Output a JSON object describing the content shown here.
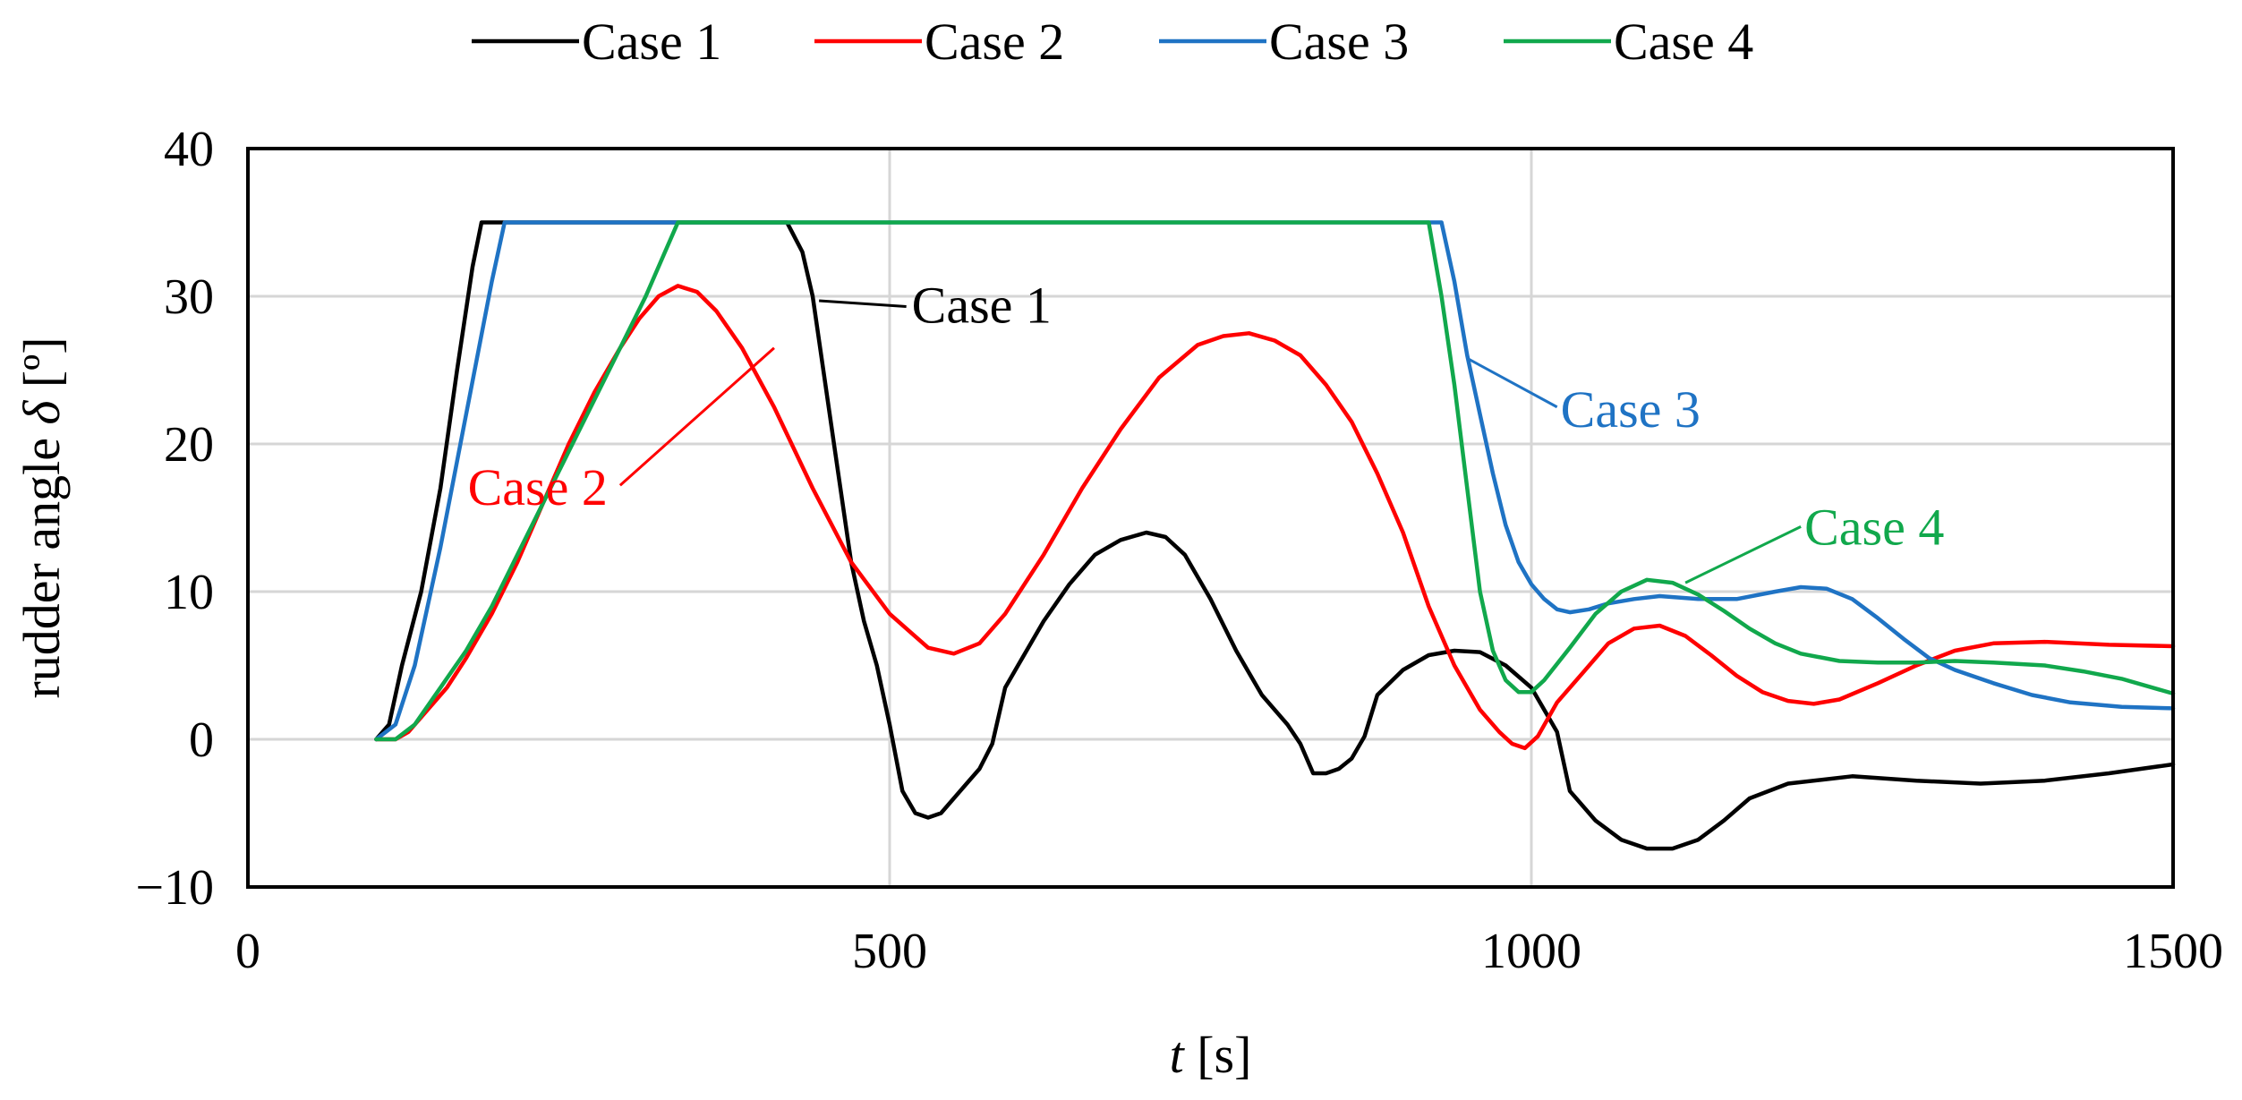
{
  "chart_data": {
    "type": "line",
    "title": "",
    "xlabel_italic": "t",
    "xlabel_rest": " [s]",
    "ylabel_text": "rudder angle ",
    "ylabel_symbol": "δ",
    "ylabel_unit": " [º]",
    "xlim": [
      0,
      1500
    ],
    "ylim": [
      -10,
      40
    ],
    "x_ticks": [
      0,
      500,
      1000,
      1500
    ],
    "y_ticks": [
      -10,
      0,
      10,
      20,
      30,
      40
    ],
    "x_tick_labels": [
      "0",
      "500",
      "1000",
      "1500"
    ],
    "y_tick_labels": [
      "−10",
      "0",
      "10",
      "20",
      "30",
      "40"
    ],
    "grid": true,
    "legend_position": "top-center",
    "colors": {
      "Case 1": "#000000",
      "Case 2": "#ff0000",
      "Case 3": "#1f73c4",
      "Case 4": "#11a84c"
    },
    "series": [
      {
        "name": "Case 1",
        "color": "#000000",
        "points": [
          [
            100,
            0
          ],
          [
            110,
            1
          ],
          [
            120,
            5
          ],
          [
            135,
            10
          ],
          [
            150,
            17
          ],
          [
            163,
            25
          ],
          [
            175,
            32
          ],
          [
            182,
            35
          ],
          [
            420,
            35
          ],
          [
            432,
            33
          ],
          [
            440,
            30
          ],
          [
            450,
            24
          ],
          [
            460,
            18
          ],
          [
            470,
            12
          ],
          [
            480,
            8
          ],
          [
            490,
            5
          ],
          [
            500,
            1
          ],
          [
            510,
            -3.5
          ],
          [
            520,
            -5
          ],
          [
            530,
            -5.3
          ],
          [
            540,
            -5
          ],
          [
            550,
            -4
          ],
          [
            560,
            -3
          ],
          [
            570,
            -2
          ],
          [
            580,
            -0.3
          ],
          [
            590,
            3.5
          ],
          [
            600,
            5
          ],
          [
            620,
            8
          ],
          [
            640,
            10.5
          ],
          [
            660,
            12.5
          ],
          [
            680,
            13.5
          ],
          [
            700,
            14
          ],
          [
            715,
            13.7
          ],
          [
            730,
            12.5
          ],
          [
            750,
            9.5
          ],
          [
            770,
            6
          ],
          [
            790,
            3
          ],
          [
            810,
            1
          ],
          [
            820,
            -0.3
          ],
          [
            830,
            -2.3
          ],
          [
            840,
            -2.3
          ],
          [
            850,
            -2
          ],
          [
            860,
            -1.3
          ],
          [
            870,
            0.2
          ],
          [
            880,
            3
          ],
          [
            900,
            4.7
          ],
          [
            920,
            5.7
          ],
          [
            940,
            6
          ],
          [
            960,
            5.9
          ],
          [
            980,
            5
          ],
          [
            1000,
            3.5
          ],
          [
            1020,
            0.5
          ],
          [
            1030,
            -3.5
          ],
          [
            1050,
            -5.5
          ],
          [
            1070,
            -6.8
          ],
          [
            1090,
            -7.4
          ],
          [
            1110,
            -7.4
          ],
          [
            1130,
            -6.8
          ],
          [
            1150,
            -5.5
          ],
          [
            1170,
            -4
          ],
          [
            1200,
            -3
          ],
          [
            1250,
            -2.5
          ],
          [
            1300,
            -2.8
          ],
          [
            1350,
            -3
          ],
          [
            1400,
            -2.8
          ],
          [
            1450,
            -2.3
          ],
          [
            1500,
            -1.7
          ]
        ]
      },
      {
        "name": "Case 2",
        "color": "#ff0000",
        "points": [
          [
            100,
            0
          ],
          [
            115,
            0
          ],
          [
            125,
            0.5
          ],
          [
            140,
            2
          ],
          [
            155,
            3.5
          ],
          [
            170,
            5.5
          ],
          [
            190,
            8.5
          ],
          [
            210,
            12
          ],
          [
            230,
            16
          ],
          [
            250,
            20
          ],
          [
            270,
            23.5
          ],
          [
            290,
            26.5
          ],
          [
            305,
            28.5
          ],
          [
            320,
            30
          ],
          [
            335,
            30.7
          ],
          [
            350,
            30.3
          ],
          [
            365,
            29
          ],
          [
            385,
            26.5
          ],
          [
            410,
            22.5
          ],
          [
            440,
            17
          ],
          [
            470,
            12
          ],
          [
            500,
            8.5
          ],
          [
            530,
            6.2
          ],
          [
            550,
            5.8
          ],
          [
            570,
            6.5
          ],
          [
            590,
            8.5
          ],
          [
            620,
            12.5
          ],
          [
            650,
            17
          ],
          [
            680,
            21
          ],
          [
            710,
            24.5
          ],
          [
            740,
            26.7
          ],
          [
            760,
            27.3
          ],
          [
            780,
            27.5
          ],
          [
            800,
            27
          ],
          [
            820,
            26
          ],
          [
            840,
            24
          ],
          [
            860,
            21.5
          ],
          [
            880,
            18
          ],
          [
            900,
            14
          ],
          [
            920,
            9
          ],
          [
            940,
            5
          ],
          [
            960,
            2
          ],
          [
            975,
            0.5
          ],
          [
            985,
            -0.3
          ],
          [
            995,
            -0.6
          ],
          [
            1005,
            0.2
          ],
          [
            1020,
            2.5
          ],
          [
            1040,
            4.5
          ],
          [
            1060,
            6.5
          ],
          [
            1080,
            7.5
          ],
          [
            1100,
            7.7
          ],
          [
            1120,
            7
          ],
          [
            1140,
            5.7
          ],
          [
            1160,
            4.3
          ],
          [
            1180,
            3.2
          ],
          [
            1200,
            2.6
          ],
          [
            1220,
            2.4
          ],
          [
            1240,
            2.7
          ],
          [
            1270,
            3.8
          ],
          [
            1300,
            5
          ],
          [
            1330,
            6
          ],
          [
            1360,
            6.5
          ],
          [
            1400,
            6.6
          ],
          [
            1450,
            6.4
          ],
          [
            1500,
            6.3
          ]
        ]
      },
      {
        "name": "Case 3",
        "color": "#1f73c4",
        "points": [
          [
            100,
            0
          ],
          [
            115,
            1
          ],
          [
            130,
            5
          ],
          [
            150,
            13
          ],
          [
            170,
            22
          ],
          [
            190,
            31
          ],
          [
            200,
            35
          ],
          [
            930,
            35
          ],
          [
            940,
            31
          ],
          [
            950,
            26
          ],
          [
            960,
            22
          ],
          [
            970,
            18
          ],
          [
            980,
            14.5
          ],
          [
            990,
            12
          ],
          [
            1000,
            10.5
          ],
          [
            1010,
            9.5
          ],
          [
            1020,
            8.8
          ],
          [
            1030,
            8.6
          ],
          [
            1045,
            8.8
          ],
          [
            1060,
            9.2
          ],
          [
            1080,
            9.5
          ],
          [
            1100,
            9.7
          ],
          [
            1130,
            9.5
          ],
          [
            1160,
            9.5
          ],
          [
            1190,
            10
          ],
          [
            1210,
            10.3
          ],
          [
            1230,
            10.2
          ],
          [
            1250,
            9.5
          ],
          [
            1270,
            8.2
          ],
          [
            1290,
            6.8
          ],
          [
            1310,
            5.5
          ],
          [
            1330,
            4.7
          ],
          [
            1360,
            3.8
          ],
          [
            1390,
            3
          ],
          [
            1420,
            2.5
          ],
          [
            1460,
            2.2
          ],
          [
            1500,
            2.1
          ]
        ]
      },
      {
        "name": "Case 4",
        "color": "#11a84c",
        "points": [
          [
            100,
            0
          ],
          [
            115,
            0
          ],
          [
            130,
            1
          ],
          [
            150,
            3.5
          ],
          [
            170,
            6
          ],
          [
            190,
            9
          ],
          [
            210,
            12.5
          ],
          [
            230,
            16
          ],
          [
            250,
            19.5
          ],
          [
            270,
            23
          ],
          [
            290,
            26.5
          ],
          [
            310,
            30
          ],
          [
            325,
            33
          ],
          [
            335,
            35
          ],
          [
            920,
            35
          ],
          [
            930,
            30
          ],
          [
            940,
            24
          ],
          [
            950,
            17
          ],
          [
            960,
            10
          ],
          [
            970,
            6
          ],
          [
            980,
            4
          ],
          [
            990,
            3.2
          ],
          [
            1000,
            3.2
          ],
          [
            1010,
            4
          ],
          [
            1030,
            6.2
          ],
          [
            1050,
            8.5
          ],
          [
            1070,
            10
          ],
          [
            1090,
            10.8
          ],
          [
            1110,
            10.6
          ],
          [
            1130,
            9.8
          ],
          [
            1150,
            8.7
          ],
          [
            1170,
            7.5
          ],
          [
            1190,
            6.5
          ],
          [
            1210,
            5.8
          ],
          [
            1240,
            5.3
          ],
          [
            1270,
            5.2
          ],
          [
            1300,
            5.2
          ],
          [
            1330,
            5.3
          ],
          [
            1360,
            5.2
          ],
          [
            1400,
            5
          ],
          [
            1430,
            4.6
          ],
          [
            1460,
            4.1
          ],
          [
            1500,
            3.1
          ]
        ]
      }
    ],
    "annotations": [
      {
        "text": "Case 1",
        "series": "Case 1",
        "color": "#000000",
        "at": [
          445,
          29.7
        ],
        "label": [
          513,
          29.3
        ]
      },
      {
        "text": "Case 2",
        "series": "Case 2",
        "color": "#ff0000",
        "at": [
          410,
          26.5
        ],
        "label": [
          290,
          17.2
        ]
      },
      {
        "text": "Case 3",
        "series": "Case 3",
        "color": "#1f73c4",
        "at": [
          950,
          25.8
        ],
        "label": [
          1020,
          22.5
        ]
      },
      {
        "text": "Case 4",
        "series": "Case 4",
        "color": "#11a84c",
        "at": [
          1120,
          10.6
        ],
        "label": [
          1210,
          14.4
        ]
      }
    ]
  }
}
